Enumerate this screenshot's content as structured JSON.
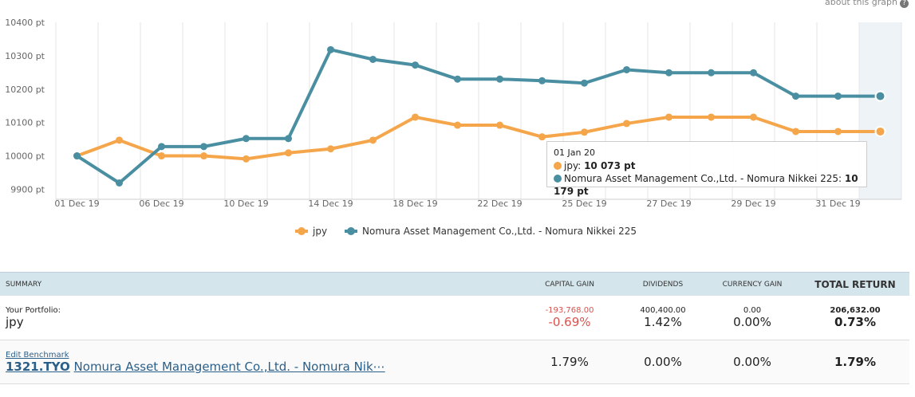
{
  "header": {
    "about": "about this graph",
    "icon": "?"
  },
  "chart_data": {
    "type": "line",
    "categories": [
      "01 Dec 19",
      null,
      "06 Dec 19",
      null,
      "10 Dec 19",
      null,
      "14 Dec 19",
      null,
      "18 Dec 19",
      null,
      "22 Dec 19",
      null,
      "25 Dec 19",
      null,
      "27 Dec 19",
      null,
      "29 Dec 19",
      null,
      "31 Dec 19",
      null
    ],
    "series": [
      {
        "name": "jpy",
        "color": "#f5a54a",
        "values": [
          10000,
          10047,
          10000,
          10000,
          9991,
          10009,
          10021,
          10047,
          10116,
          10092,
          10092,
          10057,
          10071,
          10097,
          10116,
          10116,
          10116,
          10073,
          10073,
          10073
        ]
      },
      {
        "name": "Nomura Asset Management Co.,Ltd. - Nomura Nikkei 225",
        "color": "#4a8fa1",
        "values": [
          10000,
          9919,
          10028,
          10028,
          10052,
          10052,
          10318,
          10289,
          10272,
          10230,
          10230,
          10225,
          10218,
          10258,
          10249,
          10249,
          10249,
          10179,
          10179,
          10179
        ]
      }
    ],
    "ylim": [
      9870,
      10400
    ],
    "yticks": [
      {
        "value": 9900,
        "label": "9900 pt"
      },
      {
        "value": 10000,
        "label": "10000 pt"
      },
      {
        "value": 10100,
        "label": "10100 pt"
      },
      {
        "value": 10200,
        "label": "10200 pt"
      },
      {
        "value": 10300,
        "label": "10300 pt"
      },
      {
        "value": 10400,
        "label": "10400 pt"
      }
    ],
    "grid": true,
    "legend": "bottom",
    "tooltip": {
      "date": "01 Jan 20",
      "items": [
        {
          "label": "jpy:",
          "value": "10 073 pt"
        },
        {
          "label": "Nomura Asset Management Co.,Ltd. - Nomura Nikkei 225:",
          "value": "10 179 pt"
        }
      ]
    }
  },
  "table": {
    "headers": [
      "SUMMARY",
      "CAPITAL GAIN",
      "DIVIDENDS",
      "CURRENCY GAIN",
      "TOTAL RETURN"
    ],
    "rows": [
      {
        "label": "Your Portfolio:",
        "name": "jpy",
        "cells": [
          [
            "-193,768.00",
            "-0.69%"
          ],
          [
            "400,400.00",
            "1.42%"
          ],
          [
            "0.00",
            "0.00%"
          ],
          [
            "206,632.00",
            "0.73%"
          ]
        ]
      },
      {
        "label": "Edit Benchmark",
        "ticker": "1321.TYO",
        "name": "Nomura Asset Management Co.,Ltd. - Nomura Nik⋯",
        "cells": [
          [
            "1.79%"
          ],
          [
            "0.00%"
          ],
          [
            "0.00%"
          ],
          [
            "1.79%"
          ]
        ]
      }
    ]
  }
}
